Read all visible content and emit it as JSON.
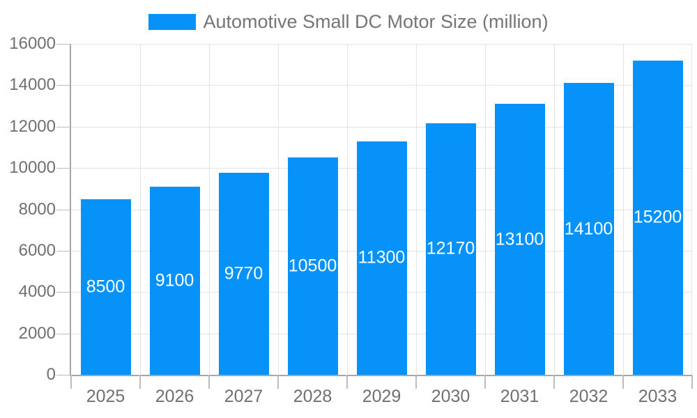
{
  "legend": {
    "label": "Automotive Small DC Motor Size (million)"
  },
  "chart_data": {
    "type": "bar",
    "title": "Automotive Small DC Motor Size (million)",
    "series_name": "Automotive Small DC Motor Size (million)",
    "categories": [
      "2025",
      "2026",
      "2027",
      "2028",
      "2029",
      "2030",
      "2031",
      "2032",
      "2033"
    ],
    "values": [
      8500,
      9100,
      9770,
      10500,
      11300,
      12170,
      13100,
      14100,
      15200
    ],
    "bar_labels": [
      "8500",
      "9100",
      "9770",
      "10500",
      "11300",
      "12170",
      "13100",
      "14100",
      "15200"
    ],
    "xlabel": "",
    "ylabel": "",
    "ylim": [
      0,
      16000
    ],
    "ytick_step": 2000,
    "yticks": [
      0,
      2000,
      4000,
      6000,
      8000,
      10000,
      12000,
      14000,
      16000
    ],
    "grid": true,
    "legend_position": "top-center",
    "bar_labels_visible": true,
    "colors": {
      "bar": "#0692f8",
      "bar_label_text": "#ffffff",
      "axis_line": "#a6a6a6",
      "tick": "#bdbdbd",
      "gridline": "#e3e3e3",
      "axis_text": "#707070",
      "legend_text": "#757575",
      "background": "#ffffff"
    }
  }
}
